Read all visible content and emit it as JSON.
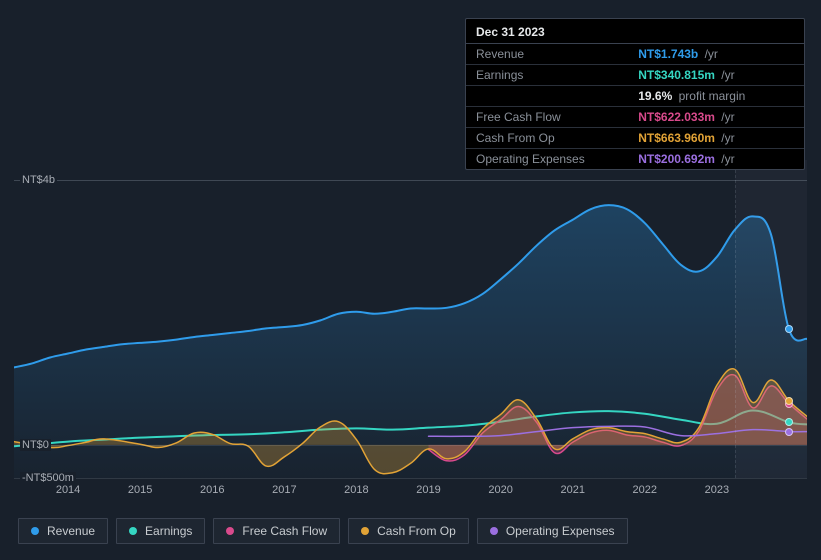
{
  "tooltip": {
    "date": "Dec 31 2023",
    "rows": [
      {
        "label": "Revenue",
        "value": "NT$1.743b",
        "unit": "/yr",
        "color": "#2f9ceb"
      },
      {
        "label": "Earnings",
        "value": "NT$340.815m",
        "unit": "/yr",
        "color": "#35d6c2"
      },
      {
        "label": "",
        "value": "19.6%",
        "unit": "profit margin",
        "color": "#e6e8ea"
      },
      {
        "label": "Free Cash Flow",
        "value": "NT$622.033m",
        "unit": "/yr",
        "color": "#d94a8c"
      },
      {
        "label": "Cash From Op",
        "value": "NT$663.960m",
        "unit": "/yr",
        "color": "#e2a336"
      },
      {
        "label": "Operating Expenses",
        "value": "NT$200.692m",
        "unit": "/yr",
        "color": "#9b6fe0"
      }
    ]
  },
  "chart": {
    "background_color": "#18202b",
    "grid_color": "rgba(200,210,230,0.14)",
    "ylim_m": [
      -500,
      4000
    ],
    "yticks": [
      {
        "v": 4000,
        "label": "NT$4b"
      },
      {
        "v": 0,
        "label": "NT$0"
      },
      {
        "v": -500,
        "label": "-NT$500m"
      }
    ],
    "xlim": [
      2013.25,
      2024.25
    ],
    "xticks": [
      2014,
      2015,
      2016,
      2017,
      2018,
      2019,
      2020,
      2021,
      2022,
      2023
    ],
    "future_from": 2023.25,
    "cursor_x": 2024.0,
    "series": [
      {
        "name": "Revenue",
        "color": "#2f9ceb",
        "fill": true,
        "width": 2,
        "points": [
          [
            2013.25,
            1170
          ],
          [
            2013.5,
            1230
          ],
          [
            2013.75,
            1320
          ],
          [
            2014.0,
            1380
          ],
          [
            2014.25,
            1440
          ],
          [
            2014.5,
            1480
          ],
          [
            2014.75,
            1520
          ],
          [
            2015.0,
            1540
          ],
          [
            2015.25,
            1560
          ],
          [
            2015.5,
            1590
          ],
          [
            2015.75,
            1630
          ],
          [
            2016.0,
            1660
          ],
          [
            2016.25,
            1690
          ],
          [
            2016.5,
            1720
          ],
          [
            2016.75,
            1760
          ],
          [
            2017.0,
            1780
          ],
          [
            2017.25,
            1810
          ],
          [
            2017.5,
            1880
          ],
          [
            2017.75,
            1980
          ],
          [
            2018.0,
            2010
          ],
          [
            2018.25,
            1980
          ],
          [
            2018.5,
            2010
          ],
          [
            2018.75,
            2060
          ],
          [
            2019.0,
            2060
          ],
          [
            2019.25,
            2070
          ],
          [
            2019.5,
            2140
          ],
          [
            2019.75,
            2280
          ],
          [
            2020.0,
            2500
          ],
          [
            2020.25,
            2740
          ],
          [
            2020.5,
            3010
          ],
          [
            2020.75,
            3240
          ],
          [
            2021.0,
            3400
          ],
          [
            2021.25,
            3560
          ],
          [
            2021.5,
            3620
          ],
          [
            2021.75,
            3560
          ],
          [
            2022.0,
            3350
          ],
          [
            2022.25,
            3030
          ],
          [
            2022.5,
            2720
          ],
          [
            2022.75,
            2620
          ],
          [
            2023.0,
            2840
          ],
          [
            2023.25,
            3250
          ],
          [
            2023.5,
            3450
          ],
          [
            2023.75,
            3180
          ],
          [
            2024.0,
            1743
          ],
          [
            2024.25,
            1600
          ]
        ]
      },
      {
        "name": "Earnings",
        "color": "#35d6c2",
        "fill": false,
        "width": 2,
        "points": [
          [
            2013.25,
            -20
          ],
          [
            2014.0,
            50
          ],
          [
            2014.5,
            80
          ],
          [
            2015.0,
            110
          ],
          [
            2015.5,
            130
          ],
          [
            2016.0,
            150
          ],
          [
            2016.5,
            160
          ],
          [
            2017.0,
            190
          ],
          [
            2017.5,
            230
          ],
          [
            2018.0,
            250
          ],
          [
            2018.5,
            230
          ],
          [
            2019.0,
            260
          ],
          [
            2019.5,
            290
          ],
          [
            2020.0,
            350
          ],
          [
            2020.5,
            430
          ],
          [
            2021.0,
            490
          ],
          [
            2021.5,
            510
          ],
          [
            2022.0,
            470
          ],
          [
            2022.5,
            380
          ],
          [
            2023.0,
            320
          ],
          [
            2023.5,
            520
          ],
          [
            2024.0,
            341
          ],
          [
            2024.25,
            310
          ]
        ]
      },
      {
        "name": "Free Cash Flow",
        "color": "#d94a8c",
        "fill": true,
        "width": 1.5,
        "points": [
          [
            2019.0,
            -70
          ],
          [
            2019.25,
            -240
          ],
          [
            2019.5,
            -150
          ],
          [
            2019.75,
            180
          ],
          [
            2020.0,
            380
          ],
          [
            2020.25,
            580
          ],
          [
            2020.5,
            340
          ],
          [
            2020.75,
            -120
          ],
          [
            2021.0,
            40
          ],
          [
            2021.25,
            180
          ],
          [
            2021.5,
            220
          ],
          [
            2021.75,
            150
          ],
          [
            2022.0,
            120
          ],
          [
            2022.25,
            40
          ],
          [
            2022.5,
            -10
          ],
          [
            2022.75,
            210
          ],
          [
            2023.0,
            830
          ],
          [
            2023.25,
            1050
          ],
          [
            2023.5,
            560
          ],
          [
            2023.75,
            890
          ],
          [
            2024.0,
            622
          ],
          [
            2024.25,
            390
          ]
        ]
      },
      {
        "name": "Cash From Op",
        "color": "#e2a336",
        "fill": true,
        "width": 1.5,
        "points": [
          [
            2013.25,
            50
          ],
          [
            2013.75,
            -40
          ],
          [
            2014.0,
            -10
          ],
          [
            2014.25,
            40
          ],
          [
            2014.5,
            90
          ],
          [
            2015.0,
            10
          ],
          [
            2015.25,
            -40
          ],
          [
            2015.5,
            30
          ],
          [
            2015.75,
            180
          ],
          [
            2016.0,
            160
          ],
          [
            2016.25,
            20
          ],
          [
            2016.5,
            -20
          ],
          [
            2016.75,
            -320
          ],
          [
            2017.0,
            -180
          ],
          [
            2017.25,
            20
          ],
          [
            2017.5,
            270
          ],
          [
            2017.75,
            350
          ],
          [
            2018.0,
            80
          ],
          [
            2018.25,
            -370
          ],
          [
            2018.5,
            -420
          ],
          [
            2018.75,
            -280
          ],
          [
            2019.0,
            -60
          ],
          [
            2019.25,
            -210
          ],
          [
            2019.5,
            -100
          ],
          [
            2019.75,
            240
          ],
          [
            2020.0,
            460
          ],
          [
            2020.25,
            680
          ],
          [
            2020.5,
            390
          ],
          [
            2020.75,
            -60
          ],
          [
            2021.0,
            90
          ],
          [
            2021.25,
            230
          ],
          [
            2021.5,
            260
          ],
          [
            2021.75,
            200
          ],
          [
            2022.0,
            170
          ],
          [
            2022.25,
            90
          ],
          [
            2022.5,
            40
          ],
          [
            2022.75,
            260
          ],
          [
            2023.0,
            900
          ],
          [
            2023.25,
            1140
          ],
          [
            2023.5,
            640
          ],
          [
            2023.75,
            980
          ],
          [
            2024.0,
            664
          ],
          [
            2024.25,
            430
          ]
        ]
      },
      {
        "name": "Operating Expenses",
        "color": "#9b6fe0",
        "fill": false,
        "width": 1.5,
        "points": [
          [
            2019.0,
            130
          ],
          [
            2019.5,
            130
          ],
          [
            2020.0,
            140
          ],
          [
            2020.5,
            200
          ],
          [
            2021.0,
            260
          ],
          [
            2021.5,
            280
          ],
          [
            2022.0,
            270
          ],
          [
            2022.5,
            140
          ],
          [
            2023.0,
            170
          ],
          [
            2023.5,
            230
          ],
          [
            2024.0,
            201
          ],
          [
            2024.25,
            200
          ]
        ]
      }
    ]
  },
  "legend": [
    {
      "label": "Revenue",
      "color": "#2f9ceb"
    },
    {
      "label": "Earnings",
      "color": "#35d6c2"
    },
    {
      "label": "Free Cash Flow",
      "color": "#d94a8c"
    },
    {
      "label": "Cash From Op",
      "color": "#e2a336"
    },
    {
      "label": "Operating Expenses",
      "color": "#9b6fe0"
    }
  ]
}
